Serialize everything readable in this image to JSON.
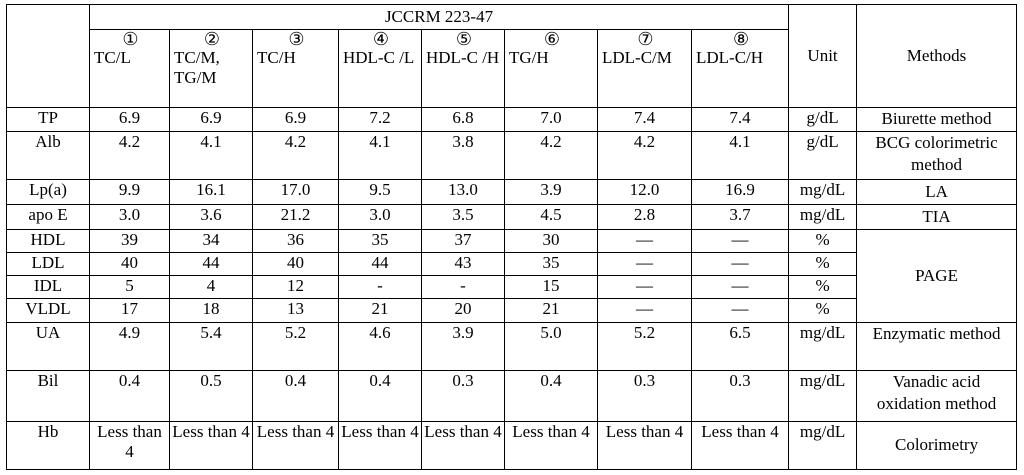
{
  "header": {
    "group": "JCCRM 223-47",
    "unit": "Unit",
    "methods": "Methods",
    "samples": [
      {
        "num": "①",
        "label": "TC/L"
      },
      {
        "num": "②",
        "label": "TC/M, TG/M"
      },
      {
        "num": "③",
        "label": "TC/H"
      },
      {
        "num": "④",
        "label": "HDL-C /L"
      },
      {
        "num": "⑤",
        "label": "HDL-C /H"
      },
      {
        "num": "⑥",
        "label": "TG/H"
      },
      {
        "num": "⑦",
        "label": "LDL-C/M"
      },
      {
        "num": "⑧",
        "label": "LDL-C/H"
      }
    ]
  },
  "rows": [
    {
      "name": "TP",
      "values": [
        "6.9",
        "6.9",
        "6.9",
        "7.2",
        "6.8",
        "7.0",
        "7.4",
        "7.4"
      ],
      "unit": "g/dL",
      "method": "Biurette method"
    },
    {
      "name": "Alb",
      "values": [
        "4.2",
        "4.1",
        "4.2",
        "4.1",
        "3.8",
        "4.2",
        "4.2",
        "4.1"
      ],
      "unit": "g/dL",
      "method": "BCG colorimetric method"
    },
    {
      "name": "Lp(a)",
      "values": [
        "9.9",
        "16.1",
        "17.0",
        "9.5",
        "13.0",
        "3.9",
        "12.0",
        "16.9"
      ],
      "unit": "mg/dL",
      "method": "LA"
    },
    {
      "name": "apo E",
      "values": [
        "3.0",
        "3.6",
        "21.2",
        "3.0",
        "3.5",
        "4.5",
        "2.8",
        "3.7"
      ],
      "unit": "mg/dL",
      "method": "TIA"
    },
    {
      "name": "HDL",
      "values": [
        "39",
        "34",
        "36",
        "35",
        "37",
        "30",
        "—",
        "—"
      ],
      "unit": "%",
      "method": "PAGE"
    },
    {
      "name": "LDL",
      "values": [
        "40",
        "44",
        "40",
        "44",
        "43",
        "35",
        "—",
        "—"
      ],
      "unit": "%"
    },
    {
      "name": "IDL",
      "values": [
        "5",
        "4",
        "12",
        "-",
        "-",
        "15",
        "—",
        "—"
      ],
      "unit": "%"
    },
    {
      "name": "VLDL",
      "values": [
        "17",
        "18",
        "13",
        "21",
        "20",
        "21",
        "—",
        "—"
      ],
      "unit": "%"
    },
    {
      "name": "UA",
      "values": [
        "4.9",
        "5.4",
        "5.2",
        "4.6",
        "3.9",
        "5.0",
        "5.2",
        "6.5"
      ],
      "unit": "mg/dL",
      "method": "Enzymatic method"
    },
    {
      "name": "Bil",
      "values": [
        "0.4",
        "0.5",
        "0.4",
        "0.4",
        "0.3",
        "0.4",
        "0.3",
        "0.3"
      ],
      "unit": "mg/dL",
      "method": "Vanadic acid oxidation method"
    },
    {
      "name": "Hb",
      "values": [
        "Less than 4",
        "Less than 4",
        "Less than 4",
        "Less than 4",
        "Less than 4",
        "Less than 4",
        "Less than 4",
        "Less than 4"
      ],
      "unit": "mg/dL",
      "method": "Colorimetry"
    }
  ]
}
